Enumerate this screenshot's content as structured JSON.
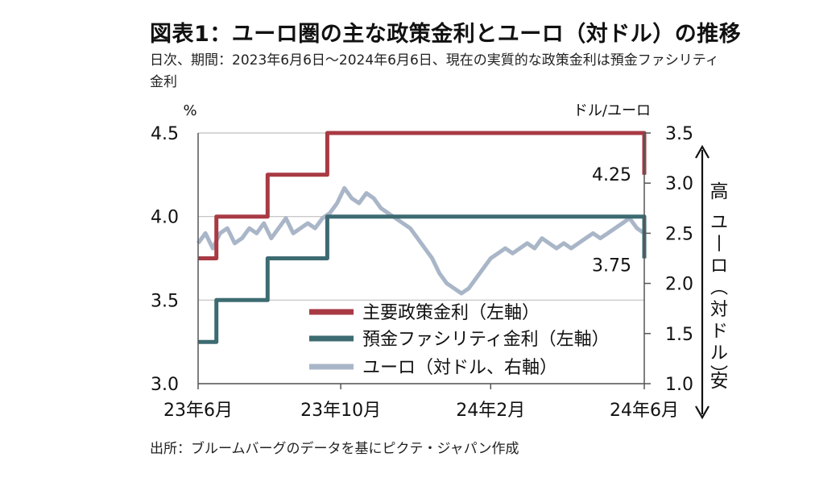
{
  "title": "図表1：ユーロ圏の主な政策金利とユーロ（対ドル）の推移",
  "subtitle": "日次、期間：2023年6月6日～2024年6月6日、現在の実質的な政策金利は預金ファシリティ金利",
  "source": "出所：ブルームバーグのデータを基にピクテ・ジャパン作成",
  "chart_data": {
    "type": "line",
    "left_unit": "%",
    "right_unit": "ドル/ユーロ",
    "right_direction": {
      "up": "高",
      "down": "安",
      "label": "ユーロ（対ドル）"
    },
    "x_range": [
      "2023-06-06",
      "2024-06-06"
    ],
    "x_ticks": [
      {
        "date": "2023-06-06",
        "label": "23年6月"
      },
      {
        "date": "2023-10-01",
        "label": "23年10月"
      },
      {
        "date": "2024-02-01",
        "label": "24年2月"
      },
      {
        "date": "2024-06-06",
        "label": "24年6月"
      }
    ],
    "y_left": {
      "min": 3.0,
      "max": 4.5,
      "ticks": [
        "3.0",
        "3.5",
        "4.0",
        "4.5"
      ]
    },
    "y_right": {
      "min": 1.0,
      "max": 3.5,
      "ticks": [
        "1.0",
        "1.5",
        "2.0",
        "2.5",
        "3.0",
        "3.5"
      ]
    },
    "grid": "horizontal",
    "legend_position": "bottom-center",
    "colors": {
      "main": "#a83a44",
      "deposit": "#3d6b72",
      "euro": "#a9b6c8",
      "axis": "#555555",
      "grid": "#bfbfbf"
    },
    "annotations": [
      {
        "label": "4.25",
        "series": "主要政策金利（左軸）"
      },
      {
        "label": "3.75",
        "series": "預金ファシリティ金利（左軸）"
      }
    ],
    "series": [
      {
        "name": "主要政策金利（左軸）",
        "axis": "left",
        "step": true,
        "points": [
          [
            "2023-06-06",
            3.75
          ],
          [
            "2023-06-21",
            4.0
          ],
          [
            "2023-08-02",
            4.25
          ],
          [
            "2023-09-20",
            4.5
          ],
          [
            "2024-06-05",
            4.5
          ],
          [
            "2024-06-06",
            4.25
          ]
        ]
      },
      {
        "name": "預金ファシリティ金利（左軸）",
        "axis": "left",
        "step": true,
        "points": [
          [
            "2023-06-06",
            3.25
          ],
          [
            "2023-06-21",
            3.5
          ],
          [
            "2023-08-02",
            3.75
          ],
          [
            "2023-09-20",
            4.0
          ],
          [
            "2024-06-05",
            4.0
          ],
          [
            "2024-06-06",
            3.75
          ]
        ]
      },
      {
        "name": "ユーロ（対ドル、右軸）",
        "axis": "right",
        "step": false,
        "points": [
          [
            "2023-06-06",
            2.4
          ],
          [
            "2023-06-12",
            2.5
          ],
          [
            "2023-06-18",
            2.35
          ],
          [
            "2023-06-24",
            2.5
          ],
          [
            "2023-06-30",
            2.55
          ],
          [
            "2023-07-06",
            2.4
          ],
          [
            "2023-07-12",
            2.45
          ],
          [
            "2023-07-18",
            2.55
          ],
          [
            "2023-07-24",
            2.5
          ],
          [
            "2023-07-30",
            2.6
          ],
          [
            "2023-08-05",
            2.45
          ],
          [
            "2023-08-11",
            2.55
          ],
          [
            "2023-08-17",
            2.65
          ],
          [
            "2023-08-23",
            2.5
          ],
          [
            "2023-08-29",
            2.55
          ],
          [
            "2023-09-04",
            2.6
          ],
          [
            "2023-09-10",
            2.55
          ],
          [
            "2023-09-16",
            2.65
          ],
          [
            "2023-09-22",
            2.7
          ],
          [
            "2023-09-28",
            2.8
          ],
          [
            "2023-10-04",
            2.95
          ],
          [
            "2023-10-10",
            2.85
          ],
          [
            "2023-10-16",
            2.8
          ],
          [
            "2023-10-22",
            2.9
          ],
          [
            "2023-10-28",
            2.85
          ],
          [
            "2023-11-03",
            2.75
          ],
          [
            "2023-11-09",
            2.7
          ],
          [
            "2023-11-15",
            2.65
          ],
          [
            "2023-11-21",
            2.6
          ],
          [
            "2023-11-27",
            2.55
          ],
          [
            "2023-12-03",
            2.45
          ],
          [
            "2023-12-09",
            2.35
          ],
          [
            "2023-12-15",
            2.25
          ],
          [
            "2023-12-21",
            2.1
          ],
          [
            "2023-12-27",
            2.0
          ],
          [
            "2024-01-02",
            1.95
          ],
          [
            "2024-01-08",
            1.9
          ],
          [
            "2024-01-14",
            1.95
          ],
          [
            "2024-01-20",
            2.05
          ],
          [
            "2024-01-26",
            2.15
          ],
          [
            "2024-02-01",
            2.25
          ],
          [
            "2024-02-07",
            2.3
          ],
          [
            "2024-02-13",
            2.35
          ],
          [
            "2024-02-19",
            2.3
          ],
          [
            "2024-02-25",
            2.35
          ],
          [
            "2024-03-02",
            2.4
          ],
          [
            "2024-03-08",
            2.35
          ],
          [
            "2024-03-14",
            2.45
          ],
          [
            "2024-03-20",
            2.4
          ],
          [
            "2024-03-26",
            2.35
          ],
          [
            "2024-04-01",
            2.4
          ],
          [
            "2024-04-07",
            2.35
          ],
          [
            "2024-04-13",
            2.4
          ],
          [
            "2024-04-19",
            2.45
          ],
          [
            "2024-04-25",
            2.5
          ],
          [
            "2024-05-01",
            2.45
          ],
          [
            "2024-05-07",
            2.5
          ],
          [
            "2024-05-13",
            2.55
          ],
          [
            "2024-05-19",
            2.6
          ],
          [
            "2024-05-25",
            2.65
          ],
          [
            "2024-05-31",
            2.55
          ],
          [
            "2024-06-06",
            2.5
          ]
        ]
      }
    ]
  }
}
